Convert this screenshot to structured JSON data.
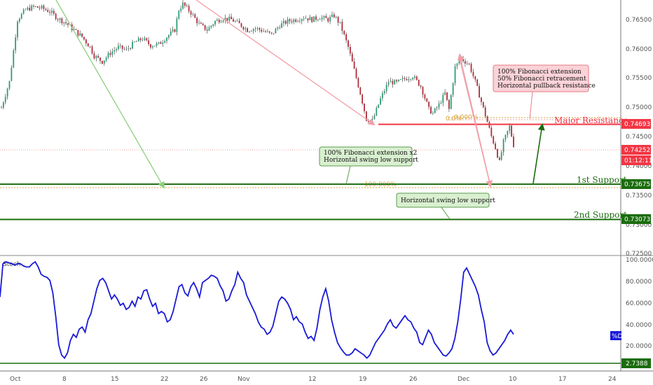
{
  "chart_data": [
    {
      "type": "candlestick",
      "ylim": [
        0.7238,
        0.7682
      ],
      "y_ticks": [
        "0.76500",
        "0.76000",
        "0.75500",
        "0.75000",
        "0.74500",
        "0.74000",
        "0.73500",
        "0.73000",
        "0.72500"
      ],
      "x_ticks": [
        "Oct",
        "8",
        "15",
        "22",
        "26",
        "Nov",
        "12",
        "19",
        "26",
        "Dec",
        "10",
        "17",
        "24"
      ],
      "close_path": [
        [
          0,
          0.7495
        ],
        [
          4,
          0.754
        ],
        [
          8,
          0.7648
        ],
        [
          12,
          0.7665
        ],
        [
          16,
          0.767
        ],
        [
          20,
          0.7668
        ],
        [
          24,
          0.7662
        ],
        [
          28,
          0.765
        ],
        [
          32,
          0.7642
        ],
        [
          36,
          0.763
        ],
        [
          40,
          0.7618
        ],
        [
          44,
          0.76
        ],
        [
          46,
          0.7585
        ],
        [
          50,
          0.7575
        ],
        [
          54,
          0.759
        ],
        [
          58,
          0.76
        ],
        [
          62,
          0.7595
        ],
        [
          66,
          0.7608
        ],
        [
          70,
          0.7615
        ],
        [
          74,
          0.7603
        ],
        [
          78,
          0.7605
        ],
        [
          82,
          0.7618
        ],
        [
          86,
          0.763
        ],
        [
          88,
          0.7665
        ],
        [
          90,
          0.7675
        ],
        [
          94,
          0.766
        ],
        [
          98,
          0.764
        ],
        [
          102,
          0.763
        ],
        [
          106,
          0.7645
        ],
        [
          110,
          0.765
        ],
        [
          114,
          0.7648
        ],
        [
          118,
          0.764
        ],
        [
          122,
          0.763
        ],
        [
          126,
          0.7633
        ],
        [
          130,
          0.7628
        ],
        [
          134,
          0.7622
        ],
        [
          138,
          0.7638
        ],
        [
          142,
          0.7645
        ],
        [
          146,
          0.7648
        ],
        [
          150,
          0.7652
        ],
        [
          154,
          0.7648
        ],
        [
          158,
          0.7652
        ],
        [
          162,
          0.7648
        ],
        [
          165,
          0.7655
        ],
        [
          168,
          0.764
        ],
        [
          172,
          0.76
        ],
        [
          175,
          0.756
        ],
        [
          178,
          0.752
        ],
        [
          181,
          0.7475
        ],
        [
          184,
          0.7472
        ],
        [
          188,
          0.751
        ],
        [
          192,
          0.754
        ],
        [
          196,
          0.7538
        ],
        [
          200,
          0.7545
        ],
        [
          204,
          0.755
        ],
        [
          208,
          0.7532
        ],
        [
          212,
          0.7492
        ],
        [
          214,
          0.7485
        ],
        [
          217,
          0.75
        ],
        [
          220,
          0.752
        ],
        [
          222,
          0.7492
        ],
        [
          225,
          0.7565
        ],
        [
          228,
          0.758
        ],
        [
          232,
          0.757
        ],
        [
          235,
          0.754
        ],
        [
          238,
          0.7505
        ],
        [
          241,
          0.747
        ],
        [
          243,
          0.7445
        ],
        [
          245,
          0.7425
        ],
        [
          247,
          0.74
        ],
        [
          249,
          0.7435
        ],
        [
          252,
          0.7462
        ],
        [
          254,
          0.743
        ]
      ],
      "close_x_range": [
        0,
        254
      ],
      "levels": [
        {
          "label": "Major Resistance",
          "value": "0.74693",
          "v": 0.74693,
          "color": "#f23645"
        },
        {
          "label": "1st Support",
          "value": "0.73675",
          "v": 0.73675,
          "color": "#1b6c0e"
        },
        {
          "label": "2nd Support",
          "value": "0.73073",
          "v": 0.73073,
          "color": "#1b6c0e"
        }
      ],
      "last_price": {
        "value": "0.74252",
        "v": 0.74252,
        "countdown": "01:12:11",
        "color": "#f23645"
      },
      "fib_labels": [
        "0.0%",
        "0.000%",
        "100.000%"
      ],
      "annotations": [
        {
          "lines": [
            "100% Fibonacci extension",
            "50% Fibonacci retracement",
            "Horizontal pullback resistance"
          ],
          "tone": "red"
        },
        {
          "lines": [
            "100% Fibonacci extension x2",
            "Horizontal swing low support"
          ],
          "tone": "green"
        },
        {
          "lines": [
            "Horizontal swing low support"
          ],
          "tone": "green"
        }
      ]
    },
    {
      "type": "line",
      "name": "Stoch",
      "ylim": [
        0,
        100
      ],
      "y_ticks": [
        "100.0000",
        "80.0000",
        "60.0000",
        "40.0000",
        "20.0000"
      ],
      "series": [
        {
          "name": "%D",
          "color": "#1a1ad6",
          "values": [
            64,
            96,
            98,
            97,
            96,
            95,
            96,
            96,
            94,
            93,
            93,
            96,
            98,
            93,
            86,
            84,
            83,
            80,
            68,
            45,
            18,
            8,
            5,
            10,
            22,
            28,
            25,
            33,
            35,
            30,
            42,
            48,
            60,
            72,
            80,
            82,
            78,
            70,
            62,
            66,
            62,
            56,
            58,
            52,
            54,
            60,
            55,
            64,
            62,
            70,
            71,
            62,
            55,
            58,
            48,
            50,
            48,
            40,
            42,
            50,
            62,
            74,
            76,
            68,
            65,
            74,
            78,
            72,
            64,
            78,
            80,
            82,
            85,
            84,
            82,
            75,
            70,
            60,
            62,
            70,
            76,
            88,
            82,
            78,
            66,
            60,
            54,
            48,
            40,
            35,
            33,
            28,
            30,
            36,
            48,
            60,
            64,
            62,
            58,
            52,
            42,
            45,
            40,
            38,
            30,
            24,
            26,
            22,
            34,
            52,
            64,
            72,
            60,
            42,
            30,
            20,
            15,
            11,
            8,
            8,
            10,
            14,
            12,
            10,
            8,
            5,
            8,
            14,
            20,
            24,
            28,
            32,
            38,
            42,
            36,
            34,
            38,
            42,
            46,
            42,
            40,
            34,
            30,
            20,
            18,
            25,
            32,
            28,
            20,
            16,
            12,
            8,
            7,
            10,
            14,
            24,
            40,
            62,
            88,
            92,
            86,
            80,
            74,
            66,
            52,
            40,
            20,
            12,
            8,
            10,
            14,
            18,
            22,
            28,
            32,
            28
          ]
        }
      ],
      "baseline_label": "2.7388",
      "legend": "%D"
    }
  ]
}
